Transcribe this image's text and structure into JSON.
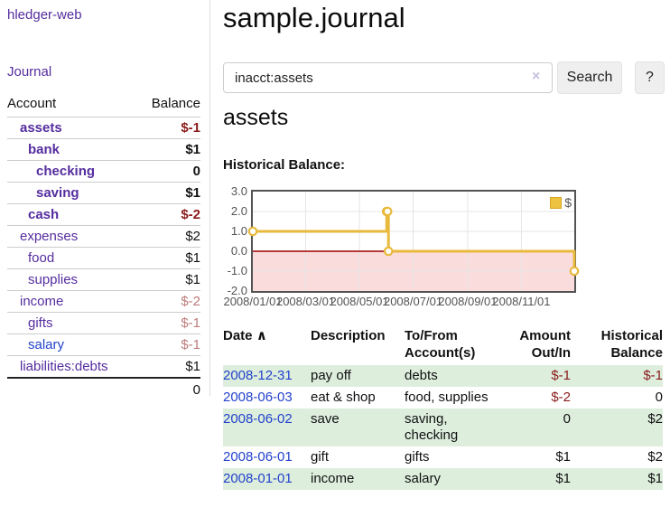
{
  "brand": "hledger-web",
  "nav": {
    "journal": "Journal"
  },
  "page": {
    "title": "sample.journal"
  },
  "search": {
    "value": "inacct:assets",
    "clear": "×",
    "search_label": "Search",
    "help_label": "?"
  },
  "account_page": {
    "title": "assets",
    "chart_title": "Historical Balance:"
  },
  "sidebar_accounts": {
    "headers": {
      "account": "Account",
      "balance": "Balance"
    },
    "rows": [
      {
        "name": "assets",
        "balance": "$-1",
        "depth": 1,
        "bold": true,
        "neg": "strong"
      },
      {
        "name": "bank",
        "balance": "$1",
        "depth": 2,
        "bold": true,
        "neg": "none"
      },
      {
        "name": "checking",
        "balance": "0",
        "depth": 3,
        "bold": true,
        "neg": "none"
      },
      {
        "name": "saving",
        "balance": "$1",
        "depth": 3,
        "bold": true,
        "neg": "none"
      },
      {
        "name": "cash",
        "balance": "$-2",
        "depth": 2,
        "bold": true,
        "neg": "strong"
      },
      {
        "name": "expenses",
        "balance": "$2",
        "depth": 1,
        "bold": false,
        "neg": "none"
      },
      {
        "name": "food",
        "balance": "$1",
        "depth": 2,
        "bold": false,
        "neg": "none"
      },
      {
        "name": "supplies",
        "balance": "$1",
        "depth": 2,
        "bold": false,
        "neg": "none"
      },
      {
        "name": "income",
        "balance": "$-2",
        "depth": 1,
        "bold": false,
        "neg": "soft"
      },
      {
        "name": "gifts",
        "balance": "$-1",
        "depth": 2,
        "bold": false,
        "neg": "soft"
      },
      {
        "name": "salary",
        "balance": "$-1",
        "depth": 2,
        "bold": false,
        "neg": "soft",
        "link": "unvisited"
      },
      {
        "name": "liabilities:debts",
        "balance": "$1",
        "depth": 1,
        "bold": false,
        "neg": "none"
      }
    ],
    "total": "0"
  },
  "chart_data": {
    "type": "line",
    "step": true,
    "title": "Historical Balance:",
    "x_range": [
      "2008-01-01",
      "2008-12-31"
    ],
    "ylim": [
      -2.0,
      3.0
    ],
    "ytick_labels": [
      "3.0",
      "2.0",
      "1.0",
      "0.0",
      "-1.0",
      "-2.0"
    ],
    "xtick_labels": [
      "2008/01/01",
      "2008/03/01",
      "2008/05/01",
      "2008/07/01",
      "2008/09/01",
      "2008/11/01"
    ],
    "xtick_dates": [
      "2008-01-01",
      "2008-03-01",
      "2008-05-01",
      "2008-07-01",
      "2008-09-01",
      "2008-11-01"
    ],
    "series": [
      {
        "name": "$",
        "points": [
          {
            "date": "2008-01-01",
            "value": 1
          },
          {
            "date": "2008-06-01",
            "value": 2
          },
          {
            "date": "2008-06-02",
            "value": 2
          },
          {
            "date": "2008-06-03",
            "value": 0
          },
          {
            "date": "2008-12-31",
            "value": -1
          }
        ]
      }
    ],
    "legend": {
      "label": "$",
      "position": "top-right"
    },
    "grid": true,
    "negative_region_shaded": true
  },
  "register": {
    "headers": {
      "date": "Date",
      "sort_indicator": "∧",
      "description": "Description",
      "accounts": "To/From Account(s)",
      "amount": "Amount Out/In",
      "balance": "Historical Balance"
    },
    "rows": [
      {
        "date": "2008-12-31",
        "description": "pay off",
        "accounts": "debts",
        "amount": "$-1",
        "balance": "$-1"
      },
      {
        "date": "2008-06-03",
        "description": "eat & shop",
        "accounts": "food, supplies",
        "amount": "$-2",
        "balance": "0"
      },
      {
        "date": "2008-06-02",
        "description": "save",
        "accounts": "saving, checking",
        "amount": "0",
        "balance": "$2"
      },
      {
        "date": "2008-06-01",
        "description": "gift",
        "accounts": "gifts",
        "amount": "$1",
        "balance": "$2"
      },
      {
        "date": "2008-01-01",
        "description": "income",
        "accounts": "salary",
        "amount": "$1",
        "balance": "$1"
      }
    ]
  },
  "colors": {
    "link_purple": "#552d9f",
    "link_blue": "#2342cb",
    "negative_strong": "#8b1a1a",
    "negative_soft": "#bd7b7b",
    "row_stripe_green": "#ddeedd",
    "chart_line_gold": "#e8b93c",
    "chart_negative_fill": "#fbdcdc",
    "chart_zero_line": "#a00000",
    "chart_gridline": "#e5e5e5",
    "chart_border": "#545454"
  }
}
